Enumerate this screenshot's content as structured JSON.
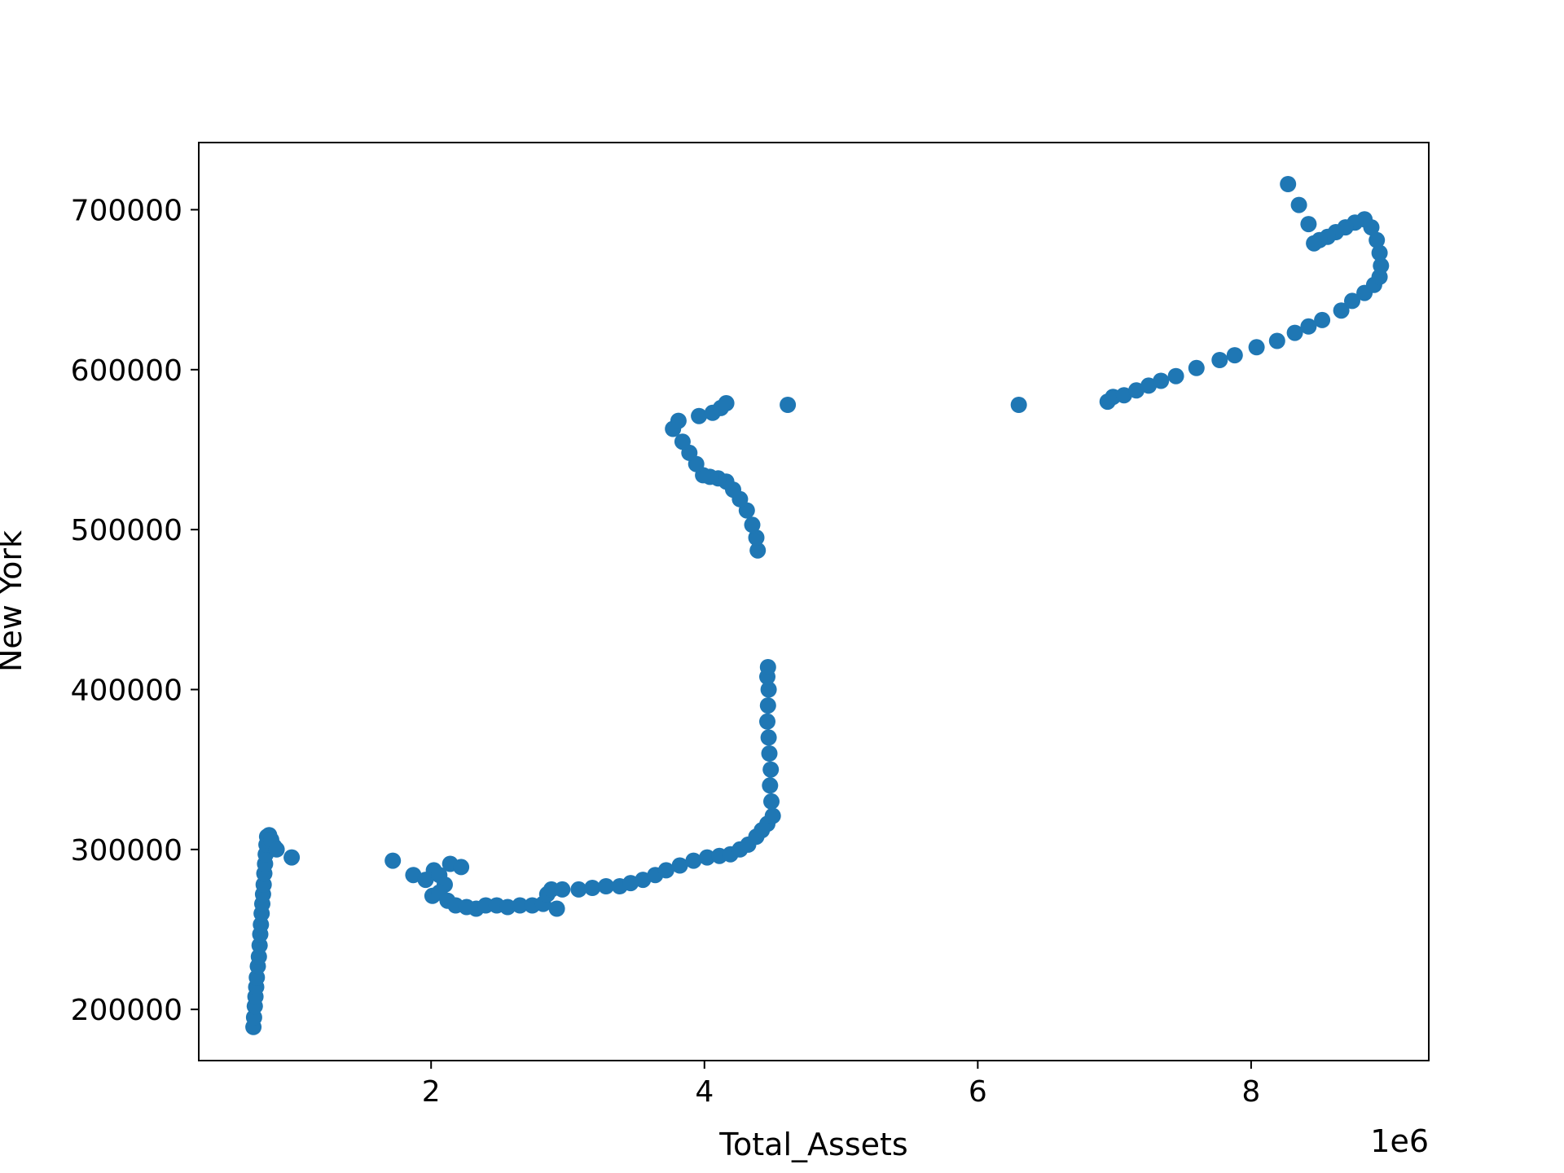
{
  "chart_data": {
    "type": "scatter",
    "xlabel": "Total_Assets",
    "ylabel": "New York",
    "x_offset_label": "1e6",
    "xlim": [
      300000,
      9300000
    ],
    "ylim": [
      168000,
      742000
    ],
    "xticks": [
      2000000,
      4000000,
      6000000,
      8000000
    ],
    "xtick_labels": [
      "2",
      "4",
      "6",
      "8"
    ],
    "yticks": [
      200000,
      300000,
      400000,
      500000,
      600000,
      700000
    ],
    "ytick_labels": [
      "200000",
      "300000",
      "400000",
      "500000",
      "600000",
      "700000"
    ],
    "grid": false,
    "colors": {
      "points": "#1f77b4",
      "axes": "#000000",
      "background": "#ffffff"
    },
    "points": [
      [
        700000,
        189000
      ],
      [
        705000,
        195000
      ],
      [
        710000,
        202000
      ],
      [
        715000,
        208000
      ],
      [
        720000,
        214000
      ],
      [
        725000,
        220000
      ],
      [
        732000,
        227000
      ],
      [
        740000,
        233000
      ],
      [
        745000,
        240000
      ],
      [
        750000,
        247000
      ],
      [
        755000,
        253000
      ],
      [
        760000,
        260000
      ],
      [
        765000,
        266000
      ],
      [
        770000,
        272000
      ],
      [
        775000,
        278000
      ],
      [
        780000,
        285000
      ],
      [
        785000,
        291000
      ],
      [
        790000,
        297000
      ],
      [
        795000,
        303000
      ],
      [
        800000,
        308000
      ],
      [
        815000,
        309000
      ],
      [
        830000,
        306000
      ],
      [
        850000,
        302000
      ],
      [
        870000,
        300000
      ],
      [
        980000,
        295000
      ],
      [
        1720000,
        293000
      ],
      [
        1870000,
        284000
      ],
      [
        1960000,
        281000
      ],
      [
        2020000,
        287000
      ],
      [
        2060000,
        284000
      ],
      [
        2100000,
        278000
      ],
      [
        2140000,
        291000
      ],
      [
        2220000,
        289000
      ],
      [
        2010000,
        271000
      ],
      [
        2060000,
        273000
      ],
      [
        2120000,
        268000
      ],
      [
        2180000,
        265000
      ],
      [
        2260000,
        264000
      ],
      [
        2330000,
        263000
      ],
      [
        2400000,
        265000
      ],
      [
        2480000,
        265000
      ],
      [
        2560000,
        264000
      ],
      [
        2650000,
        265000
      ],
      [
        2740000,
        265000
      ],
      [
        2820000,
        266000
      ],
      [
        2850000,
        272000
      ],
      [
        2880000,
        275000
      ],
      [
        2920000,
        263000
      ],
      [
        2960000,
        275000
      ],
      [
        3080000,
        275000
      ],
      [
        3180000,
        276000
      ],
      [
        3280000,
        277000
      ],
      [
        3380000,
        277000
      ],
      [
        3460000,
        279000
      ],
      [
        3550000,
        281000
      ],
      [
        3640000,
        284000
      ],
      [
        3720000,
        287000
      ],
      [
        3820000,
        290000
      ],
      [
        3920000,
        293000
      ],
      [
        4020000,
        295000
      ],
      [
        4110000,
        296000
      ],
      [
        4190000,
        297000
      ],
      [
        4260000,
        300000
      ],
      [
        4320000,
        303000
      ],
      [
        4380000,
        308000
      ],
      [
        4420000,
        312000
      ],
      [
        4460000,
        316000
      ],
      [
        4500000,
        321000
      ],
      [
        4490000,
        330000
      ],
      [
        4480000,
        340000
      ],
      [
        4485000,
        350000
      ],
      [
        4475000,
        360000
      ],
      [
        4470000,
        370000
      ],
      [
        4460000,
        380000
      ],
      [
        4465000,
        390000
      ],
      [
        4470000,
        400000
      ],
      [
        4460000,
        408000
      ],
      [
        4465000,
        414000
      ],
      [
        4390000,
        487000
      ],
      [
        4380000,
        495000
      ],
      [
        4350000,
        503000
      ],
      [
        4310000,
        512000
      ],
      [
        4260000,
        519000
      ],
      [
        4210000,
        525000
      ],
      [
        4160000,
        530000
      ],
      [
        4100000,
        532000
      ],
      [
        4040000,
        533000
      ],
      [
        3990000,
        534000
      ],
      [
        3940000,
        541000
      ],
      [
        3890000,
        548000
      ],
      [
        3840000,
        555000
      ],
      [
        3770000,
        563000
      ],
      [
        3810000,
        568000
      ],
      [
        3960000,
        571000
      ],
      [
        4060000,
        573000
      ],
      [
        4120000,
        576000
      ],
      [
        4160000,
        579000
      ],
      [
        4610000,
        578000
      ],
      [
        6300000,
        578000
      ],
      [
        6950000,
        580000
      ],
      [
        6990000,
        583000
      ],
      [
        7070000,
        584000
      ],
      [
        7160000,
        587000
      ],
      [
        7250000,
        590000
      ],
      [
        7340000,
        593000
      ],
      [
        7450000,
        596000
      ],
      [
        7600000,
        601000
      ],
      [
        7770000,
        606000
      ],
      [
        7880000,
        609000
      ],
      [
        8040000,
        614000
      ],
      [
        8190000,
        618000
      ],
      [
        8320000,
        623000
      ],
      [
        8420000,
        627000
      ],
      [
        8520000,
        631000
      ],
      [
        8660000,
        637000
      ],
      [
        8740000,
        643000
      ],
      [
        8830000,
        648000
      ],
      [
        8900000,
        653000
      ],
      [
        8940000,
        658000
      ],
      [
        8950000,
        665000
      ],
      [
        8940000,
        673000
      ],
      [
        8920000,
        681000
      ],
      [
        8880000,
        689000
      ],
      [
        8830000,
        694000
      ],
      [
        8760000,
        692000
      ],
      [
        8690000,
        689000
      ],
      [
        8620000,
        686000
      ],
      [
        8560000,
        683000
      ],
      [
        8500000,
        681000
      ],
      [
        8460000,
        679000
      ],
      [
        8420000,
        691000
      ],
      [
        8350000,
        703000
      ],
      [
        8270000,
        716000
      ]
    ]
  }
}
